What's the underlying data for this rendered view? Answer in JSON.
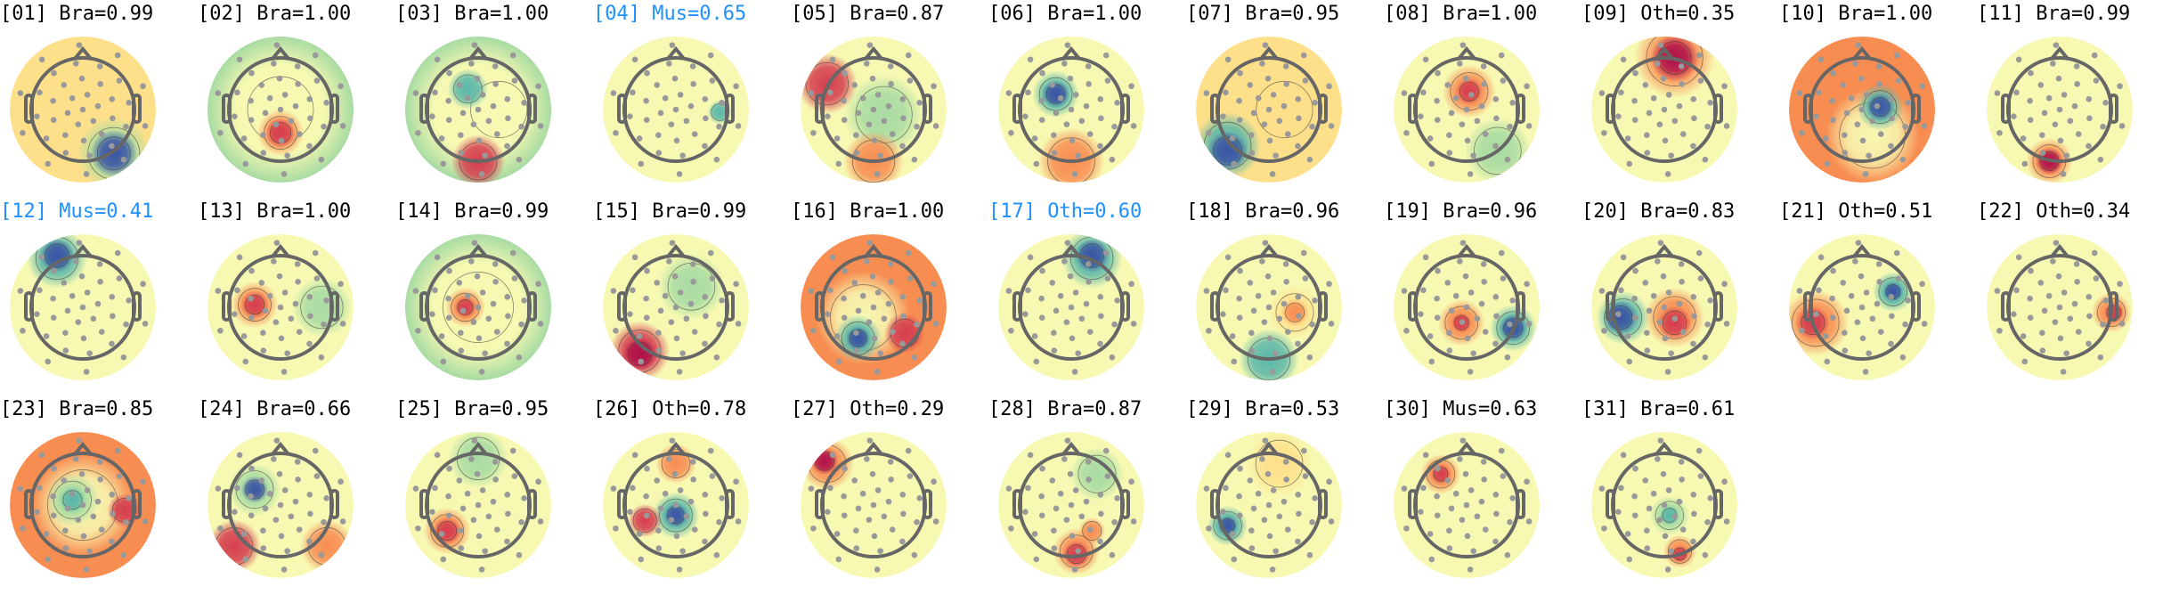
{
  "colormap": [
    "#3b55a4",
    "#5bb7a9",
    "#a8dba3",
    "#f7f9b2",
    "#fee08b",
    "#f88d52",
    "#d53e4f",
    "#b0124a"
  ],
  "highlight_color": "#1e90ff",
  "components": [
    {
      "label": "[01] Bra=0.99",
      "highlight": false
    },
    {
      "label": "[02] Bra=1.00",
      "highlight": false
    },
    {
      "label": "[03] Bra=1.00",
      "highlight": false
    },
    {
      "label": "[04] Mus=0.65",
      "highlight": true
    },
    {
      "label": "[05] Bra=0.87",
      "highlight": false
    },
    {
      "label": "[06] Bra=1.00",
      "highlight": false
    },
    {
      "label": "[07] Bra=0.95",
      "highlight": false
    },
    {
      "label": "[08] Bra=1.00",
      "highlight": false
    },
    {
      "label": "[09] Oth=0.35",
      "highlight": false
    },
    {
      "label": "[10] Bra=1.00",
      "highlight": false
    },
    {
      "label": "[11] Bra=0.99",
      "highlight": false
    },
    {
      "label": "[12] Mus=0.41",
      "highlight": true
    },
    {
      "label": "[13] Bra=1.00",
      "highlight": false
    },
    {
      "label": "[14] Bra=0.99",
      "highlight": false
    },
    {
      "label": "[15] Bra=0.99",
      "highlight": false
    },
    {
      "label": "[16] Bra=1.00",
      "highlight": false
    },
    {
      "label": "[17] Oth=0.60",
      "highlight": true
    },
    {
      "label": "[18] Bra=0.96",
      "highlight": false
    },
    {
      "label": "[19] Bra=0.96",
      "highlight": false
    },
    {
      "label": "[20] Bra=0.83",
      "highlight": false
    },
    {
      "label": "[21] Oth=0.51",
      "highlight": false
    },
    {
      "label": "[22] Oth=0.34",
      "highlight": false
    },
    {
      "label": "[23] Bra=0.85",
      "highlight": false
    },
    {
      "label": "[24] Bra=0.66",
      "highlight": false
    },
    {
      "label": "[25] Bra=0.95",
      "highlight": false
    },
    {
      "label": "[26] Oth=0.78",
      "highlight": false
    },
    {
      "label": "[27] Oth=0.29",
      "highlight": false
    },
    {
      "label": "[28] Bra=0.87",
      "highlight": false
    },
    {
      "label": "[29] Bra=0.53",
      "highlight": false
    },
    {
      "label": "[30] Mus=0.63",
      "highlight": false
    },
    {
      "label": "[31] Bra=0.61",
      "highlight": false
    }
  ]
}
